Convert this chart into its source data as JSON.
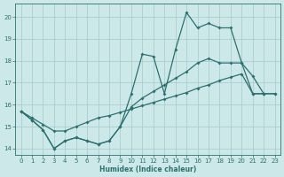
{
  "xlabel": "Humidex (Indice chaleur)",
  "bg_color": "#cce8e8",
  "grid_color": "#aacece",
  "line_color": "#2d7070",
  "xlim": [
    -0.5,
    23.5
  ],
  "ylim": [
    13.7,
    20.6
  ],
  "x_ticks": [
    0,
    1,
    2,
    3,
    4,
    5,
    6,
    7,
    8,
    9,
    10,
    11,
    12,
    13,
    14,
    15,
    16,
    17,
    18,
    19,
    20,
    21,
    22,
    23
  ],
  "y_ticks": [
    14,
    15,
    16,
    17,
    18,
    19,
    20
  ],
  "curve1_x": [
    0,
    1,
    2,
    3,
    4,
    5,
    6,
    7,
    8,
    9,
    10,
    11,
    12,
    13,
    14,
    15,
    16,
    17,
    18,
    19,
    20,
    21,
    22
  ],
  "curve1_y": [
    15.7,
    15.3,
    14.85,
    14.0,
    14.35,
    14.5,
    14.35,
    14.2,
    14.35,
    15.0,
    16.5,
    18.3,
    18.2,
    16.5,
    18.5,
    20.2,
    19.5,
    19.7,
    19.5,
    19.5,
    17.9,
    17.3,
    16.5
  ],
  "curve2_x": [
    0,
    1,
    2,
    3,
    4,
    5,
    6,
    7,
    8,
    9,
    10,
    11,
    12,
    13,
    14,
    15,
    16,
    17,
    18,
    19,
    20,
    21,
    22,
    23
  ],
  "curve2_y": [
    15.7,
    15.3,
    14.85,
    14.0,
    14.35,
    14.5,
    14.35,
    14.2,
    14.35,
    15.0,
    15.9,
    16.3,
    16.6,
    16.9,
    17.2,
    17.5,
    17.9,
    18.1,
    17.9,
    17.9,
    17.9,
    16.5,
    16.5,
    16.5
  ],
  "curve3_x": [
    0,
    1,
    2,
    3,
    4,
    5,
    6,
    7,
    8,
    9,
    10,
    11,
    12,
    13,
    14,
    15,
    16,
    17,
    18,
    19,
    20,
    21,
    22,
    23
  ],
  "curve3_y": [
    15.7,
    15.4,
    15.1,
    14.8,
    14.8,
    15.0,
    15.2,
    15.4,
    15.5,
    15.65,
    15.8,
    15.95,
    16.1,
    16.25,
    16.4,
    16.55,
    16.75,
    16.9,
    17.1,
    17.25,
    17.4,
    16.5,
    16.5,
    16.5
  ]
}
